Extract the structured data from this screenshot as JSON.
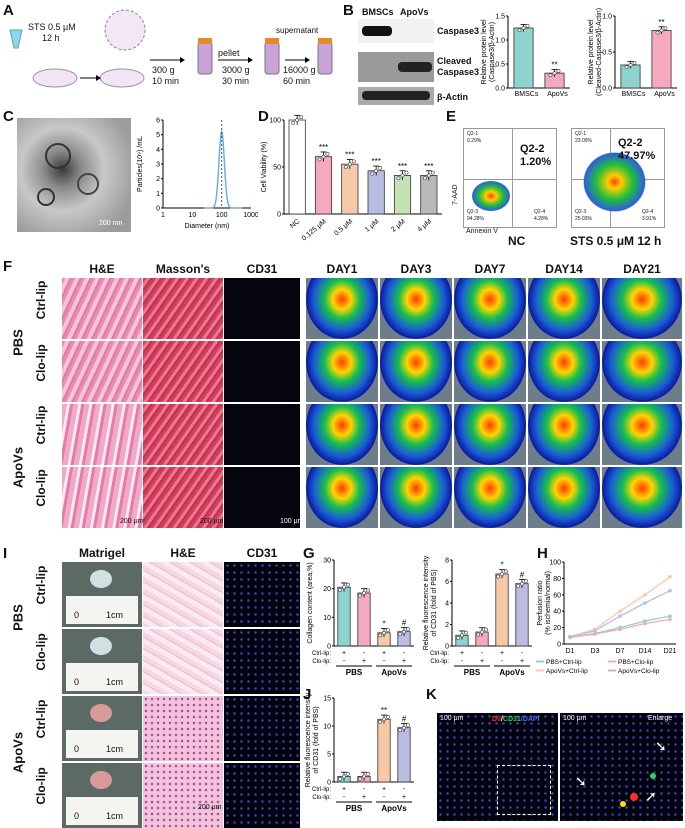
{
  "panels": {
    "A": "A",
    "B": "B",
    "C": "C",
    "D": "D",
    "E": "E",
    "F": "F",
    "G": "G",
    "H": "H",
    "I": "I",
    "J": "J",
    "K": "K"
  },
  "panel_a": {
    "sts": "STS 0.5 μM",
    "sts_time": "12 h",
    "step1_speed": "300 g",
    "step1_time": "10 min",
    "pellet": "pellet",
    "step2_speed": "3000 g",
    "step2_time": "30 min",
    "supernatant": "supernatant",
    "step3_speed": "16000 g",
    "step3_time": "60 min"
  },
  "panel_b": {
    "col1": "BMSCs",
    "col2": "ApoVs",
    "band1": "Caspase3",
    "band2": "Cleaved",
    "band2b": "Caspase3",
    "band3": "β-Actin"
  },
  "panel_c": {
    "scale": "200 nm"
  },
  "panel_e": {
    "ylabel": "7-AAD",
    "xlabel": "Annexin V",
    "nc_label": "NC",
    "sts_label": "STS 0.5 μM 12 h",
    "nc_q22": "Q2-2",
    "nc_pct": "1.20%",
    "sts_q22": "Q2-2",
    "sts_pct": "47.97%",
    "nc_q21": "Q2-1",
    "nc_q21v": "0.29%",
    "nc_q23": "Q2-3",
    "nc_q23v": "94.28%",
    "nc_q24": "Q2-4",
    "nc_q24v": "4.28%",
    "sts_q21": "Q2-1",
    "sts_q21v": "23.09%",
    "sts_q23": "Q2-3",
    "sts_q23v": "25.03%",
    "sts_q24": "Q2-4",
    "sts_q24v": "3.91%"
  },
  "panel_f": {
    "headers": [
      "H&E",
      "Masson's",
      "CD31",
      "DAY1",
      "DAY3",
      "DAY7",
      "DAY14",
      "DAY21"
    ],
    "group1": "PBS",
    "group2": "ApoVs",
    "rows": [
      "Ctrl-lip",
      "Clo-lip",
      "Ctrl-lip",
      "Clo-lip"
    ],
    "scale1": "200 μm",
    "scale2": "200 μm",
    "scale3": "100 μm"
  },
  "panel_i": {
    "headers": [
      "Matrigel",
      "H&E",
      "CD31"
    ],
    "group1": "PBS",
    "group2": "ApoVs",
    "rows": [
      "Ctrl-lip",
      "Clo-lip",
      "Ctrl-lip",
      "Clo-lip"
    ],
    "ruler_zero": "0",
    "ruler_cm": "1cm",
    "scale": "200 μm"
  },
  "panel_k": {
    "title_di": "Dil",
    "title_sep": "/",
    "title_cd31": "CD31",
    "title_dapi": "/DAPI",
    "enlarge": "Enlarge",
    "scale": "100 μm"
  },
  "chart_data": [
    {
      "id": "B1",
      "type": "bar",
      "categories": [
        "BMSCs",
        "ApoVs"
      ],
      "values": [
        1.25,
        0.31
      ],
      "colors": [
        "#8fd3cf",
        "#f4a9be"
      ],
      "ylabel": "Relative protein level",
      "ylabel2": "(Caspase3/β-Actin)",
      "ylim": [
        0,
        1.5
      ],
      "yticks": [
        "0.0",
        "0.5",
        "1.0",
        "1.5"
      ],
      "annotations": [
        "",
        "**"
      ]
    },
    {
      "id": "B2",
      "type": "bar",
      "categories": [
        "BMSCs",
        "ApoVs"
      ],
      "values": [
        0.32,
        0.8
      ],
      "colors": [
        "#8fd3cf",
        "#f4a9be"
      ],
      "ylabel": "Relative protein level",
      "ylabel2": "(Cleaved-Caspase3/β-Actin)",
      "ylim": [
        0,
        1.0
      ],
      "yticks": [
        "0.0",
        "0.5",
        "1.0"
      ],
      "annotations": [
        "",
        "**"
      ]
    },
    {
      "id": "C",
      "type": "line",
      "xlabel": "Diameter (nm)",
      "ylabel": "Particles(10⁹) /mL",
      "xticks": [
        "1",
        "10",
        "100",
        "1000"
      ],
      "yticks": [
        "0",
        "1",
        "2",
        "3",
        "4",
        "5",
        "6"
      ],
      "ylim": [
        0,
        6
      ],
      "peak_x": 100,
      "peak_y": 5.2,
      "xscale": "log"
    },
    {
      "id": "D",
      "type": "bar",
      "categories": [
        "NC",
        "0.125 μM",
        "0.5 μM",
        "1 μM",
        "2 μM",
        "4 μM"
      ],
      "values": [
        100,
        61,
        53,
        46,
        41,
        41
      ],
      "colors": [
        "#ffffff",
        "#f4a9be",
        "#f8c9a8",
        "#b9bde0",
        "#c5e2b5",
        "#b9b9b9"
      ],
      "ylabel": "Cell Viability (%)",
      "ylim": [
        0,
        100
      ],
      "yticks": [
        "0",
        "50",
        "100"
      ],
      "annotations": [
        "",
        "***",
        "***",
        "***",
        "***",
        "***"
      ]
    },
    {
      "id": "G1",
      "type": "bar",
      "categories": [
        "1",
        "2",
        "3",
        "4"
      ],
      "values": [
        20.5,
        18.5,
        4.6,
        5.0
      ],
      "colors": [
        "#8fd3cf",
        "#f4a9be",
        "#f8c9a8",
        "#b9bde0"
      ],
      "ylabel": "Collagen content (area,%)",
      "ylim": [
        0,
        30
      ],
      "yticks": [
        "0",
        "10",
        "20",
        "30"
      ],
      "annotations": [
        "",
        "",
        "*",
        "#"
      ],
      "ctrl_row": [
        "+",
        "-",
        "+",
        "-"
      ],
      "clo_row": [
        "-",
        "+",
        "-",
        "+"
      ],
      "ctrl_lab": "Ctrl-lip:",
      "clo_lab": "Clo-lip:",
      "groups": [
        "PBS",
        "ApoVs"
      ]
    },
    {
      "id": "G2",
      "type": "bar",
      "categories": [
        "1",
        "2",
        "3",
        "4"
      ],
      "values": [
        1.0,
        1.3,
        6.7,
        5.8
      ],
      "colors": [
        "#8fd3cf",
        "#f4a9be",
        "#f8c9a8",
        "#b9bde0"
      ],
      "ylabel": "Relative fluorescence intensity",
      "ylabel2": "of CD31 (fold of PBS)",
      "ylim": [
        0,
        8
      ],
      "yticks": [
        "0",
        "2",
        "4",
        "6",
        "8"
      ],
      "annotations": [
        "",
        "",
        "*",
        "#"
      ],
      "ctrl_row": [
        "+",
        "-",
        "+",
        "-"
      ],
      "clo_row": [
        "-",
        "+",
        "-",
        "+"
      ],
      "ctrl_lab": "Ctrl-lip:",
      "clo_lab": "Clo-lip:",
      "groups": [
        "PBS",
        "ApoVs"
      ]
    },
    {
      "id": "H",
      "type": "line",
      "categories": [
        "D1",
        "D3",
        "D7",
        "D14",
        "D21"
      ],
      "ylabel": "Perfusion ratio",
      "ylabel2": "(% ischemia/normal)",
      "ylim": [
        0,
        100
      ],
      "yticks": [
        "0",
        "20",
        "40",
        "60",
        "80",
        "100"
      ],
      "series": [
        {
          "name": "PBS+Ctrl-lip",
          "values": [
            8,
            13,
            20,
            28,
            34
          ],
          "color": "#8fd3cf"
        },
        {
          "name": "PBS+Clo-lip",
          "values": [
            8,
            12,
            18,
            25,
            30
          ],
          "color": "#f4a9be"
        },
        {
          "name": "ApoVs+Ctrl-lip",
          "values": [
            9,
            18,
            40,
            60,
            82
          ],
          "color": "#f8c9a8"
        },
        {
          "name": "ApoVs+Clo-lip",
          "values": [
            9,
            16,
            34,
            50,
            65
          ],
          "color": "#b9bde0"
        }
      ]
    },
    {
      "id": "J",
      "type": "bar",
      "categories": [
        "1",
        "2",
        "3",
        "4"
      ],
      "values": [
        1.0,
        1.0,
        11.2,
        9.7
      ],
      "colors": [
        "#8fd3cf",
        "#f4a9be",
        "#f8c9a8",
        "#b9bde0"
      ],
      "ylabel": "Relative fluorescence intensity",
      "ylabel2": "of CD31 (fold of PBS)",
      "ylim": [
        0,
        15
      ],
      "yticks": [
        "0",
        "5",
        "10",
        "15"
      ],
      "annotations": [
        "",
        "",
        "**",
        "#"
      ],
      "ctrl_row": [
        "+",
        "-",
        "+",
        "-"
      ],
      "clo_row": [
        "-",
        "+",
        "-",
        "+"
      ],
      "ctrl_lab": "Ctrl-lip:",
      "clo_lab": "Clo-lip:",
      "groups": [
        "PBS",
        "ApoVs"
      ]
    }
  ]
}
